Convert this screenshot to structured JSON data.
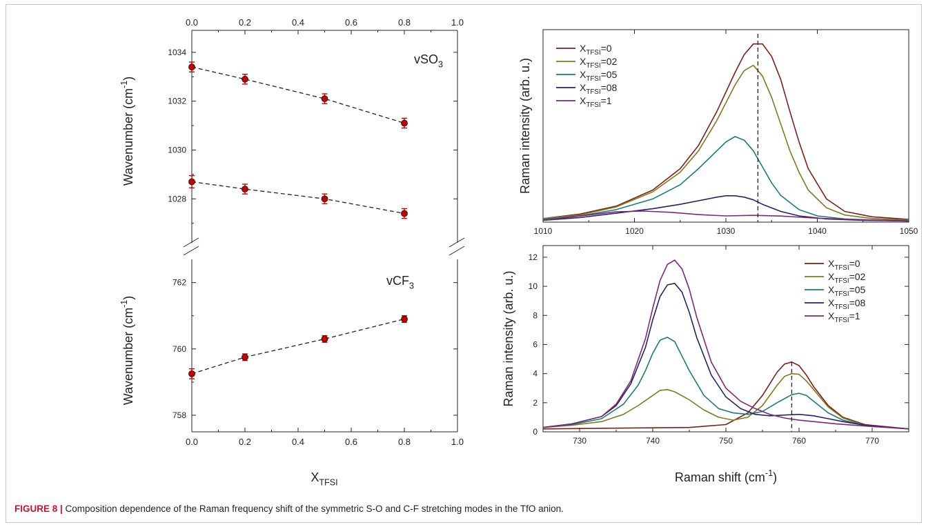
{
  "caption": {
    "label": "FIGURE 8 |",
    "text": " Composition dependence of the Raman frequency shift of the symmetric S-O and C-F stretching modes in the TfO anion."
  },
  "colors": {
    "x0": "#7f1d14",
    "x02": "#7f7a1d",
    "x05": "#1a7b76",
    "x08": "#23226b",
    "x1": "#80247a",
    "marker": "#c40000"
  },
  "chart_data": [
    {
      "id": "left_top",
      "type": "scatter",
      "x_ticks": [
        "0.0",
        "0.2",
        "0.4",
        "0.6",
        "0.8",
        "1.0"
      ],
      "ylabel": "Wavenumber  (cm",
      "ylabel_sup": "-1",
      "ylabel_close": ")",
      "annotation": "vSO",
      "annotation_sub": "3",
      "ylim": [
        1026.2,
        1034.9
      ],
      "y_ticks": [
        1028,
        1030,
        1032,
        1034
      ],
      "xlim": [
        0,
        1
      ],
      "series": [
        {
          "x": [
            0,
            0.2,
            0.5,
            0.8
          ],
          "y": [
            1033.4,
            1032.9,
            1032.1,
            1031.1
          ],
          "err": [
            0.2,
            0.2,
            0.2,
            0.2
          ]
        },
        {
          "x": [
            0,
            0.2,
            0.5,
            0.8
          ],
          "y": [
            1028.7,
            1028.4,
            1028.0,
            1027.4
          ],
          "err": [
            0.25,
            0.2,
            0.2,
            0.2
          ]
        }
      ]
    },
    {
      "id": "left_bottom",
      "type": "scatter",
      "x_ticks": [
        "0.0",
        "0.2",
        "0.4",
        "0.6",
        "0.8",
        "1.0"
      ],
      "xlabel": "X",
      "xlabel_sub": "TFSI",
      "ylabel": "Wavenumber  (cm",
      "ylabel_sup": "-1",
      "ylabel_close": ")",
      "annotation": "vCF",
      "annotation_sub": "3",
      "ylim": [
        757.5,
        762.7
      ],
      "y_ticks": [
        758,
        760,
        762
      ],
      "xlim": [
        0,
        1
      ],
      "series": [
        {
          "x": [
            0,
            0.2,
            0.5,
            0.8
          ],
          "y": [
            759.25,
            759.75,
            760.3,
            760.9
          ],
          "err": [
            0.15,
            0.1,
            0.1,
            0.1
          ]
        }
      ]
    },
    {
      "id": "right_top",
      "type": "line",
      "ylabel": "Raman intensity  (arb. u.)",
      "xlim": [
        1010,
        1050
      ],
      "x_ticks": [
        1010,
        1020,
        1030,
        1040,
        1050
      ],
      "y_ticks": [],
      "ylim": [
        0,
        1.08
      ],
      "vline_x": 1033.5,
      "series": [
        {
          "name": "X",
          "name_sub": "TFSI",
          "name_tail": "=0",
          "x": [
            1010,
            1014,
            1018,
            1022,
            1025,
            1027,
            1029,
            1031,
            1032,
            1033,
            1034,
            1035,
            1036,
            1037,
            1038,
            1039,
            1041,
            1043,
            1046,
            1050
          ],
          "y": [
            0.02,
            0.045,
            0.09,
            0.18,
            0.3,
            0.43,
            0.62,
            0.84,
            0.94,
            1.0,
            1.0,
            0.93,
            0.8,
            0.62,
            0.45,
            0.3,
            0.13,
            0.06,
            0.03,
            0.015
          ]
        },
        {
          "name": "X",
          "name_sub": "TFSI",
          "name_tail": "=02",
          "x": [
            1010,
            1014,
            1018,
            1022,
            1025,
            1027,
            1029,
            1031,
            1032,
            1033,
            1034,
            1035,
            1036,
            1037,
            1038,
            1039,
            1041,
            1043,
            1046,
            1050
          ],
          "y": [
            0.02,
            0.04,
            0.085,
            0.17,
            0.28,
            0.4,
            0.57,
            0.77,
            0.85,
            0.88,
            0.82,
            0.7,
            0.55,
            0.4,
            0.28,
            0.18,
            0.08,
            0.04,
            0.02,
            0.012
          ]
        },
        {
          "name": "X",
          "name_sub": "TFSI",
          "name_tail": "=05",
          "x": [
            1010,
            1014,
            1018,
            1022,
            1025,
            1027,
            1029,
            1030,
            1031,
            1032,
            1033,
            1034,
            1035,
            1036,
            1038,
            1040,
            1043,
            1046,
            1050
          ],
          "y": [
            0.015,
            0.035,
            0.07,
            0.13,
            0.21,
            0.3,
            0.4,
            0.45,
            0.48,
            0.46,
            0.4,
            0.31,
            0.22,
            0.15,
            0.07,
            0.035,
            0.018,
            0.012,
            0.008
          ]
        },
        {
          "name": "X",
          "name_sub": "TFSI",
          "name_tail": "=08",
          "x": [
            1010,
            1014,
            1018,
            1022,
            1025,
            1027,
            1029,
            1030,
            1031,
            1032,
            1033,
            1034,
            1036,
            1038,
            1041,
            1045,
            1050
          ],
          "y": [
            0.01,
            0.025,
            0.05,
            0.075,
            0.1,
            0.12,
            0.14,
            0.148,
            0.148,
            0.14,
            0.125,
            0.1,
            0.06,
            0.035,
            0.018,
            0.01,
            0.006
          ]
        },
        {
          "name": "X",
          "name_sub": "TFSI",
          "name_tail": "=1",
          "x": [
            1010,
            1015,
            1018,
            1021,
            1024,
            1027,
            1030,
            1033,
            1036,
            1040,
            1045,
            1050
          ],
          "y": [
            0.01,
            0.04,
            0.058,
            0.062,
            0.055,
            0.042,
            0.035,
            0.038,
            0.034,
            0.022,
            0.012,
            0.006
          ]
        }
      ]
    },
    {
      "id": "right_bottom",
      "type": "line",
      "xlabel": "Raman shift  (cm",
      "xlabel_sup": "-1",
      "xlabel_close": ")",
      "ylabel": "Raman intensity  (arb. u.)",
      "xlim": [
        725,
        775
      ],
      "x_ticks": [
        730,
        740,
        750,
        760,
        770
      ],
      "ylim": [
        0,
        12.8
      ],
      "y_ticks": [
        0,
        2,
        4,
        6,
        8,
        10,
        12
      ],
      "vline_x": 759,
      "vline_ytop": 4.8,
      "series": [
        {
          "name": "X",
          "name_sub": "TFSI",
          "name_tail": "=0",
          "x": [
            725,
            735,
            745,
            750,
            753,
            755,
            756,
            757,
            758,
            759,
            760,
            761,
            762,
            764,
            766,
            769,
            775
          ],
          "y": [
            0.2,
            0.25,
            0.3,
            0.5,
            1.3,
            2.5,
            3.3,
            4.1,
            4.65,
            4.8,
            4.55,
            3.9,
            3.1,
            1.8,
            1.0,
            0.5,
            0.2
          ]
        },
        {
          "name": "X",
          "name_sub": "TFSI",
          "name_tail": "=02",
          "x": [
            725,
            729,
            733,
            736,
            738,
            740,
            741,
            742,
            743,
            745,
            747,
            749,
            751,
            753,
            755,
            757,
            758,
            759,
            760,
            761,
            762,
            764,
            766,
            769,
            775
          ],
          "y": [
            0.3,
            0.45,
            0.7,
            1.2,
            1.8,
            2.5,
            2.85,
            2.9,
            2.75,
            2.2,
            1.5,
            1.0,
            0.8,
            1.0,
            1.8,
            3.2,
            3.8,
            4.0,
            3.95,
            3.5,
            2.9,
            1.7,
            0.95,
            0.45,
            0.2
          ]
        },
        {
          "name": "X",
          "name_sub": "TFSI",
          "name_tail": "=05",
          "x": [
            725,
            729,
            733,
            736,
            738,
            739,
            740,
            741,
            742,
            743,
            744,
            745,
            747,
            749,
            751,
            753,
            755,
            757,
            759,
            760,
            761,
            762,
            764,
            766,
            769,
            775
          ],
          "y": [
            0.3,
            0.5,
            0.9,
            1.9,
            3.2,
            4.2,
            5.4,
            6.3,
            6.5,
            6.2,
            5.2,
            4.2,
            2.5,
            1.6,
            1.3,
            1.2,
            1.4,
            2.0,
            2.55,
            2.65,
            2.5,
            2.1,
            1.3,
            0.8,
            0.45,
            0.2
          ]
        },
        {
          "name": "X",
          "name_sub": "TFSI",
          "name_tail": "=08",
          "x": [
            725,
            729,
            733,
            735,
            737,
            739,
            740,
            741,
            742,
            743,
            744,
            745,
            746,
            748,
            750,
            752,
            754,
            756,
            758,
            760,
            762,
            764,
            766,
            769,
            775
          ],
          "y": [
            0.3,
            0.55,
            1.05,
            1.8,
            3.3,
            5.8,
            7.7,
            9.3,
            10.1,
            10.2,
            9.6,
            8.2,
            6.5,
            3.9,
            2.4,
            1.6,
            1.2,
            1.1,
            1.15,
            1.2,
            1.1,
            0.9,
            0.7,
            0.45,
            0.2
          ]
        },
        {
          "name": "X",
          "name_sub": "TFSI",
          "name_tail": "=1",
          "x": [
            725,
            729,
            733,
            735,
            737,
            739,
            740,
            741,
            742,
            743,
            744,
            745,
            746,
            748,
            750,
            752,
            754,
            756,
            758,
            760,
            762,
            765,
            769,
            775
          ],
          "y": [
            0.3,
            0.55,
            1.05,
            1.9,
            3.5,
            6.4,
            8.5,
            10.4,
            11.5,
            11.8,
            11.2,
            9.8,
            7.9,
            4.8,
            3.0,
            2.1,
            1.6,
            1.2,
            0.95,
            0.8,
            0.7,
            0.55,
            0.4,
            0.2
          ]
        }
      ]
    }
  ]
}
